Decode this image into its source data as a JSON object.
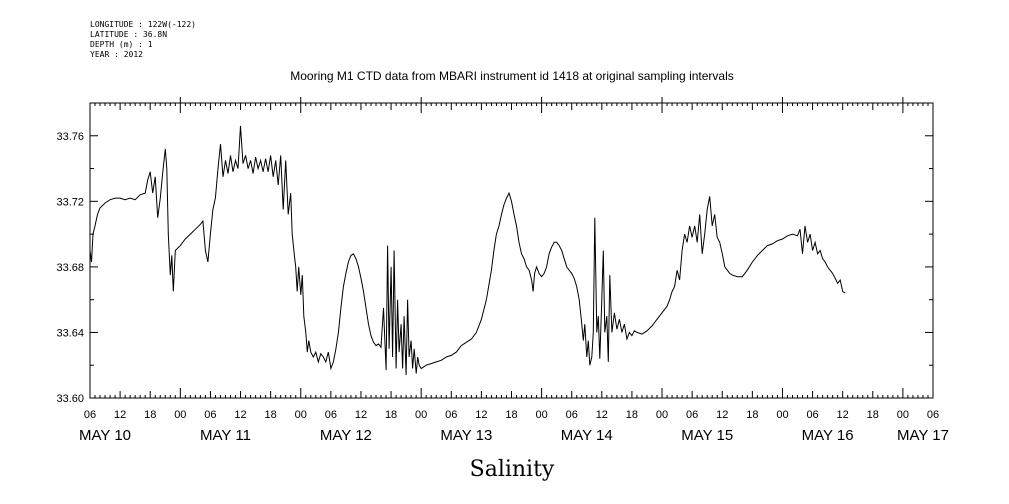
{
  "header": {
    "longitude": "LONGITUDE : 122W(-122)",
    "latitude": "LATITUDE : 36.8N",
    "depth": "DEPTH (m) : 1",
    "year": "YEAR : 2012"
  },
  "chart_data": {
    "type": "line",
    "title": "Mooring M1 CTD data from MBARI instrument id 1418 at original sampling intervals",
    "xlabel": "Salinity",
    "ylabel": "",
    "ylim": [
      33.6,
      33.78
    ],
    "y_ticks": [
      "33.60",
      "33.64",
      "33.68",
      "33.72",
      "33.76"
    ],
    "xlim_hours": [
      6,
      174
    ],
    "x_hour_tick_labels": [
      "06",
      "12",
      "18",
      "00",
      "06",
      "12",
      "18",
      "00",
      "06",
      "12",
      "18",
      "00",
      "06",
      "12",
      "18",
      "00",
      "06",
      "12",
      "18",
      "00",
      "06",
      "12",
      "18",
      "00",
      "06",
      "12",
      "18",
      "00",
      "06"
    ],
    "day_labels": [
      {
        "label": "MAY 10",
        "hour": 9
      },
      {
        "label": "MAY 11",
        "hour": 33
      },
      {
        "label": "MAY 12",
        "hour": 57
      },
      {
        "label": "MAY 13",
        "hour": 81
      },
      {
        "label": "MAY 14",
        "hour": 105
      },
      {
        "label": "MAY 15",
        "hour": 129
      },
      {
        "label": "MAY 16",
        "hour": 153
      },
      {
        "label": "MAY 17",
        "hour": 172
      }
    ],
    "series": [
      {
        "color": "#000000",
        "points": [
          [
            6,
            33.69
          ],
          [
            6.3,
            33.683
          ],
          [
            6.6,
            33.7
          ],
          [
            7,
            33.705
          ],
          [
            7.5,
            33.712
          ],
          [
            8,
            33.716
          ],
          [
            9,
            33.719
          ],
          [
            10,
            33.721
          ],
          [
            11,
            33.722
          ],
          [
            12,
            33.722
          ],
          [
            13,
            33.721
          ],
          [
            14,
            33.722
          ],
          [
            15,
            33.721
          ],
          [
            16,
            33.724
          ],
          [
            17,
            33.725
          ],
          [
            17.5,
            33.733
          ],
          [
            18,
            33.738
          ],
          [
            18.5,
            33.725
          ],
          [
            19,
            33.735
          ],
          [
            19.5,
            33.71
          ],
          [
            20,
            33.722
          ],
          [
            20.5,
            33.738
          ],
          [
            21,
            33.752
          ],
          [
            21.3,
            33.74
          ],
          [
            21.6,
            33.7
          ],
          [
            22,
            33.675
          ],
          [
            22.3,
            33.687
          ],
          [
            22.6,
            33.665
          ],
          [
            23,
            33.69
          ],
          [
            24,
            33.693
          ],
          [
            25,
            33.697
          ],
          [
            26,
            33.7
          ],
          [
            27,
            33.703
          ],
          [
            28,
            33.706
          ],
          [
            28.5,
            33.708
          ],
          [
            29,
            33.69
          ],
          [
            29.5,
            33.683
          ],
          [
            30,
            33.7
          ],
          [
            30.5,
            33.715
          ],
          [
            31,
            33.722
          ],
          [
            31.5,
            33.74
          ],
          [
            32,
            33.755
          ],
          [
            32.5,
            33.735
          ],
          [
            33,
            33.745
          ],
          [
            33.5,
            33.737
          ],
          [
            34,
            33.748
          ],
          [
            34.5,
            33.738
          ],
          [
            35,
            33.745
          ],
          [
            35.5,
            33.74
          ],
          [
            36,
            33.766
          ],
          [
            36.5,
            33.743
          ],
          [
            37,
            33.748
          ],
          [
            37.5,
            33.74
          ],
          [
            38,
            33.745
          ],
          [
            38.5,
            33.737
          ],
          [
            39,
            33.747
          ],
          [
            39.5,
            33.74
          ],
          [
            40,
            33.745
          ],
          [
            40.5,
            33.738
          ],
          [
            41,
            33.746
          ],
          [
            41.5,
            33.738
          ],
          [
            42,
            33.748
          ],
          [
            42.5,
            33.735
          ],
          [
            43,
            33.745
          ],
          [
            43.5,
            33.73
          ],
          [
            44,
            33.748
          ],
          [
            44.5,
            33.715
          ],
          [
            45,
            33.745
          ],
          [
            45.5,
            33.712
          ],
          [
            46,
            33.725
          ],
          [
            46.3,
            33.7
          ],
          [
            46.7,
            33.688
          ],
          [
            47,
            33.68
          ],
          [
            47.3,
            33.665
          ],
          [
            47.6,
            33.68
          ],
          [
            48,
            33.663
          ],
          [
            48.3,
            33.675
          ],
          [
            48.6,
            33.65
          ],
          [
            49,
            33.64
          ],
          [
            49.3,
            33.628
          ],
          [
            49.6,
            33.635
          ],
          [
            50,
            33.628
          ],
          [
            50.5,
            33.625
          ],
          [
            51,
            33.628
          ],
          [
            51.5,
            33.622
          ],
          [
            52,
            33.627
          ],
          [
            52.5,
            33.625
          ],
          [
            53,
            33.622
          ],
          [
            53.5,
            33.628
          ],
          [
            54,
            33.618
          ],
          [
            54.5,
            33.622
          ],
          [
            55,
            33.63
          ],
          [
            55.5,
            33.64
          ],
          [
            56,
            33.655
          ],
          [
            56.5,
            33.668
          ],
          [
            57,
            33.676
          ],
          [
            57.5,
            33.683
          ],
          [
            58,
            33.687
          ],
          [
            58.5,
            33.688
          ],
          [
            59,
            33.685
          ],
          [
            59.5,
            33.68
          ],
          [
            60,
            33.673
          ],
          [
            60.5,
            33.665
          ],
          [
            61,
            33.655
          ],
          [
            61.5,
            33.645
          ],
          [
            62,
            33.638
          ],
          [
            62.5,
            33.634
          ],
          [
            63,
            33.632
          ],
          [
            63.5,
            33.633
          ],
          [
            64,
            33.631
          ],
          [
            64.5,
            33.655
          ],
          [
            65,
            33.617
          ],
          [
            65.3,
            33.693
          ],
          [
            65.6,
            33.63
          ],
          [
            66,
            33.68
          ],
          [
            66.3,
            33.625
          ],
          [
            66.6,
            33.69
          ],
          [
            67,
            33.618
          ],
          [
            67.3,
            33.66
          ],
          [
            67.6,
            33.628
          ],
          [
            68,
            33.645
          ],
          [
            68.3,
            33.618
          ],
          [
            68.6,
            33.65
          ],
          [
            69,
            33.614
          ],
          [
            69.3,
            33.66
          ],
          [
            69.6,
            33.625
          ],
          [
            70,
            33.635
          ],
          [
            70.3,
            33.618
          ],
          [
            70.6,
            33.63
          ],
          [
            71,
            33.615
          ],
          [
            71.3,
            33.625
          ],
          [
            71.6,
            33.62
          ],
          [
            72,
            33.618
          ],
          [
            73,
            33.62
          ],
          [
            74,
            33.621
          ],
          [
            75,
            33.622
          ],
          [
            76,
            33.623
          ],
          [
            77,
            33.625
          ],
          [
            78,
            33.626
          ],
          [
            79,
            33.628
          ],
          [
            80,
            33.632
          ],
          [
            81,
            33.634
          ],
          [
            82,
            33.636
          ],
          [
            83,
            33.64
          ],
          [
            84,
            33.648
          ],
          [
            85,
            33.66
          ],
          [
            86,
            33.678
          ],
          [
            86.5,
            33.69
          ],
          [
            87,
            33.7
          ],
          [
            87.5,
            33.705
          ],
          [
            88,
            33.712
          ],
          [
            88.5,
            33.718
          ],
          [
            89,
            33.722
          ],
          [
            89.5,
            33.725
          ],
          [
            90,
            33.72
          ],
          [
            90.5,
            33.712
          ],
          [
            91,
            33.705
          ],
          [
            91.5,
            33.695
          ],
          [
            92,
            33.688
          ],
          [
            92.5,
            33.685
          ],
          [
            93,
            33.68
          ],
          [
            93.5,
            33.678
          ],
          [
            94,
            33.672
          ],
          [
            94.3,
            33.665
          ],
          [
            94.6,
            33.676
          ],
          [
            95,
            33.68
          ],
          [
            95.5,
            33.676
          ],
          [
            96,
            33.674
          ],
          [
            96.5,
            33.676
          ],
          [
            97,
            33.68
          ],
          [
            97.5,
            33.688
          ],
          [
            98,
            33.692
          ],
          [
            98.5,
            33.695
          ],
          [
            99,
            33.695
          ],
          [
            99.5,
            33.693
          ],
          [
            100,
            33.69
          ],
          [
            100.5,
            33.685
          ],
          [
            101,
            33.68
          ],
          [
            101.5,
            33.678
          ],
          [
            102,
            33.676
          ],
          [
            102.5,
            33.673
          ],
          [
            103,
            33.668
          ],
          [
            103.5,
            33.66
          ],
          [
            104,
            33.645
          ],
          [
            104.3,
            33.635
          ],
          [
            104.6,
            33.645
          ],
          [
            105,
            33.625
          ],
          [
            105.3,
            33.635
          ],
          [
            105.6,
            33.62
          ],
          [
            106,
            33.625
          ],
          [
            106.3,
            33.64
          ],
          [
            106.6,
            33.71
          ],
          [
            107,
            33.64
          ],
          [
            107.3,
            33.65
          ],
          [
            107.6,
            33.624
          ],
          [
            108,
            33.66
          ],
          [
            108.3,
            33.69
          ],
          [
            108.6,
            33.64
          ],
          [
            109,
            33.65
          ],
          [
            109.3,
            33.622
          ],
          [
            109.6,
            33.675
          ],
          [
            110,
            33.64
          ],
          [
            110.5,
            33.652
          ],
          [
            111,
            33.642
          ],
          [
            111.5,
            33.648
          ],
          [
            112,
            33.64
          ],
          [
            112.5,
            33.645
          ],
          [
            113,
            33.636
          ],
          [
            113.5,
            33.64
          ],
          [
            114,
            33.638
          ],
          [
            114.5,
            33.641
          ],
          [
            115,
            33.64
          ],
          [
            116,
            33.639
          ],
          [
            117,
            33.641
          ],
          [
            118,
            33.644
          ],
          [
            119,
            33.648
          ],
          [
            120,
            33.652
          ],
          [
            121,
            33.656
          ],
          [
            121.5,
            33.66
          ],
          [
            122,
            33.665
          ],
          [
            122.5,
            33.668
          ],
          [
            123,
            33.678
          ],
          [
            123.5,
            33.672
          ],
          [
            124,
            33.69
          ],
          [
            124.5,
            33.7
          ],
          [
            125,
            33.695
          ],
          [
            125.5,
            33.705
          ],
          [
            126,
            33.698
          ],
          [
            126.5,
            33.705
          ],
          [
            127,
            33.695
          ],
          [
            127.5,
            33.712
          ],
          [
            128,
            33.688
          ],
          [
            128.5,
            33.7
          ],
          [
            129,
            33.715
          ],
          [
            129.5,
            33.723
          ],
          [
            130,
            33.705
          ],
          [
            130.5,
            33.712
          ],
          [
            131,
            33.698
          ],
          [
            131.5,
            33.695
          ],
          [
            132,
            33.688
          ],
          [
            132.5,
            33.68
          ],
          [
            133,
            33.678
          ],
          [
            133.5,
            33.676
          ],
          [
            134,
            33.675
          ],
          [
            135,
            33.674
          ],
          [
            136,
            33.674
          ],
          [
            137,
            33.678
          ],
          [
            138,
            33.683
          ],
          [
            139,
            33.687
          ],
          [
            140,
            33.69
          ],
          [
            141,
            33.693
          ],
          [
            142,
            33.694
          ],
          [
            143,
            33.696
          ],
          [
            144,
            33.697
          ],
          [
            145,
            33.699
          ],
          [
            146,
            33.7
          ],
          [
            147,
            33.699
          ],
          [
            147.5,
            33.703
          ],
          [
            148,
            33.688
          ],
          [
            148.5,
            33.705
          ],
          [
            149,
            33.695
          ],
          [
            149.5,
            33.7
          ],
          [
            150,
            33.69
          ],
          [
            150.5,
            33.695
          ],
          [
            151,
            33.688
          ],
          [
            151.5,
            33.69
          ],
          [
            152,
            33.685
          ],
          [
            152.5,
            33.683
          ],
          [
            153,
            33.68
          ],
          [
            153.5,
            33.678
          ],
          [
            154,
            33.676
          ],
          [
            154.5,
            33.673
          ],
          [
            155,
            33.67
          ],
          [
            155.5,
            33.672
          ],
          [
            156,
            33.665
          ],
          [
            156.5,
            33.664
          ]
        ]
      }
    ],
    "grid": false,
    "legend": "none"
  }
}
